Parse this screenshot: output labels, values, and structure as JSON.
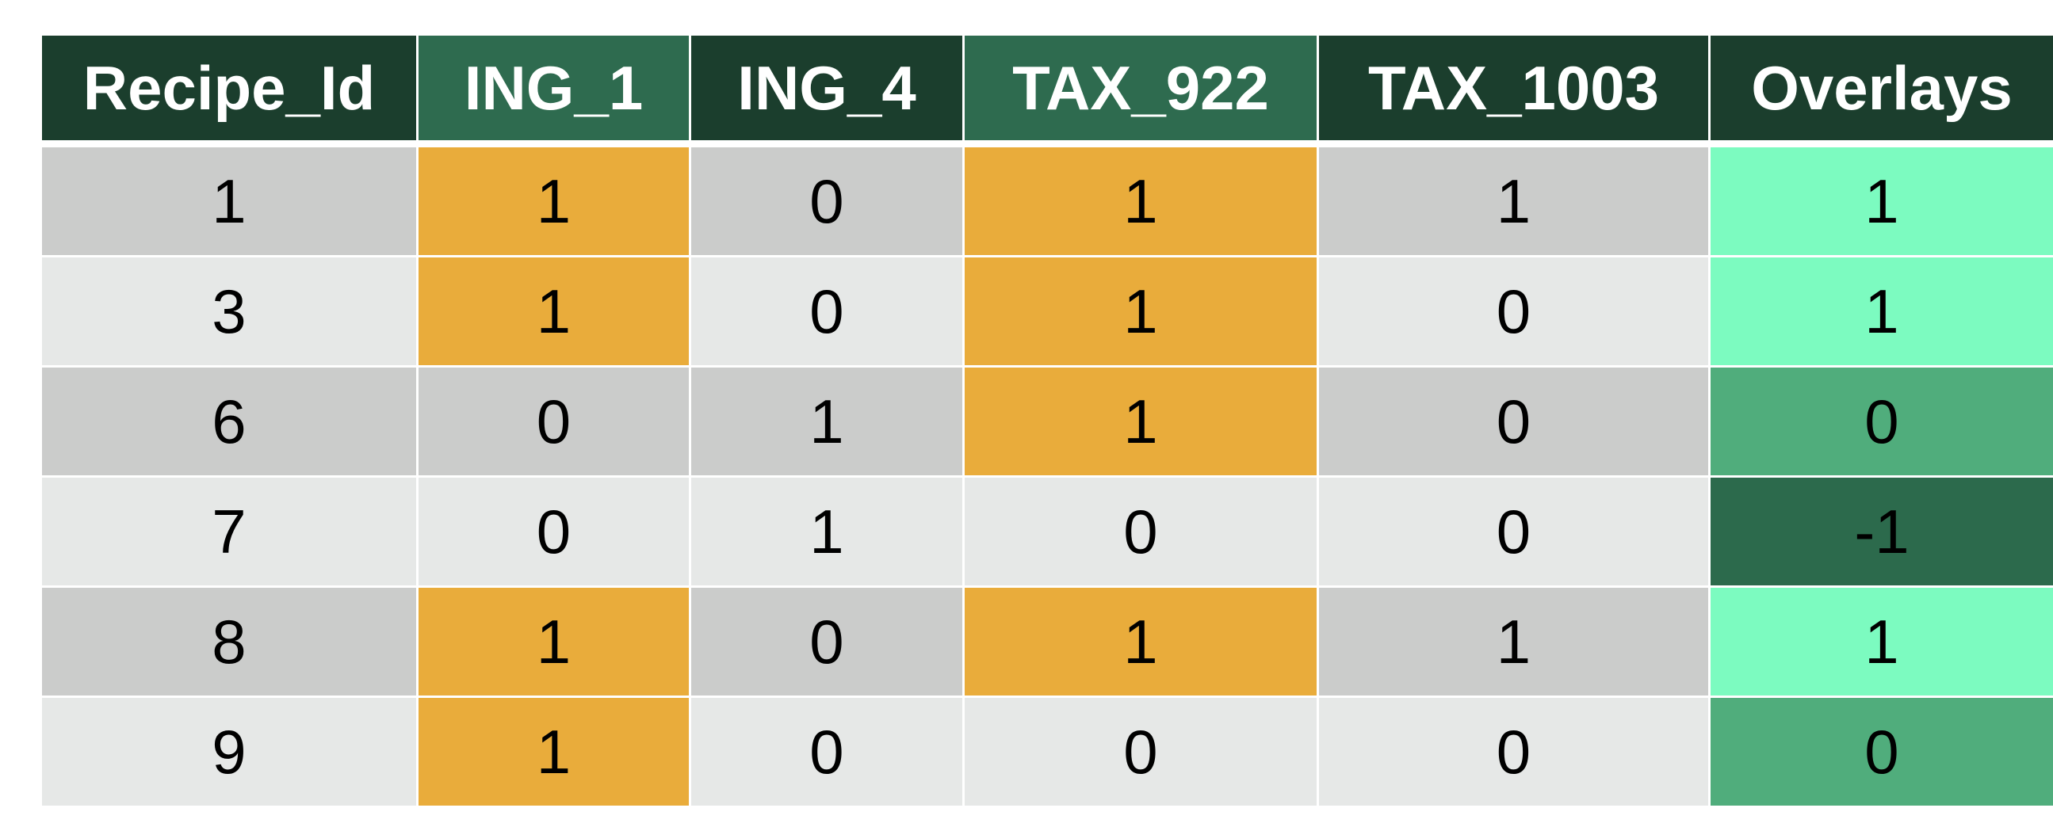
{
  "colors": {
    "header_dark": "#1b3e2d",
    "header_accent": "#2e6b4f",
    "row_dark": "#cbcccb",
    "row_light": "#e6e8e7",
    "highlight_orange": "#e9ac3b",
    "overlay_plus_one": "#7cfbc0",
    "overlay_zero": "#50ad7c",
    "overlay_minus_one": "#2c6a4c"
  },
  "table": {
    "headers": [
      "Recipe_Id",
      "ING_1",
      "ING_4",
      "TAX_922",
      "TAX_1003",
      "Overlays"
    ],
    "rows": [
      [
        "1",
        "1",
        "0",
        "1",
        "1",
        "1"
      ],
      [
        "3",
        "1",
        "0",
        "1",
        "0",
        "1"
      ],
      [
        "6",
        "0",
        "1",
        "1",
        "0",
        "0"
      ],
      [
        "7",
        "0",
        "1",
        "0",
        "0",
        "-1"
      ],
      [
        "8",
        "1",
        "0",
        "1",
        "1",
        "1"
      ],
      [
        "9",
        "1",
        "0",
        "0",
        "0",
        "0"
      ]
    ],
    "accent_header_columns": [
      1,
      3
    ],
    "highlight_columns": [
      1,
      3
    ],
    "overlay_column": 5
  }
}
